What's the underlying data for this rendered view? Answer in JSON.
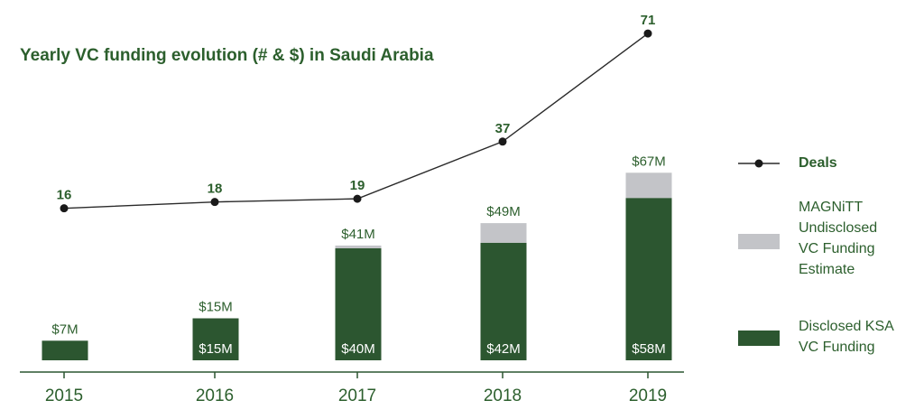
{
  "chart_data": {
    "type": "bar",
    "title": "Yearly VC funding evolution (# & $) in Saudi Arabia",
    "categories": [
      "2015",
      "2016",
      "2017",
      "2018",
      "2019"
    ],
    "series": [
      {
        "name": "Disclosed KSA VC Funding",
        "stack": "funding",
        "values": [
          7,
          15,
          40,
          42,
          58
        ],
        "labels": [
          "",
          "$15M",
          "$40M",
          "$42M",
          "$58M"
        ]
      },
      {
        "name": "MAGNiTT Undisclosed VC Funding Estimate",
        "stack": "funding",
        "values": [
          0,
          0,
          1,
          7,
          9
        ]
      }
    ],
    "totals": {
      "values": [
        7,
        15,
        41,
        49,
        67
      ],
      "labels": [
        "$7M",
        "$15M",
        "$41M",
        "$49M",
        "$67M"
      ]
    },
    "line": {
      "name": "Deals",
      "values": [
        16,
        18,
        19,
        37,
        71
      ],
      "labels": [
        "16",
        "18",
        "19",
        "37",
        "71"
      ]
    },
    "ylim_funding": [
      0,
      100
    ],
    "ylim_deals": [
      0,
      75
    ],
    "colors": {
      "disclosed": "#2c5630",
      "undisclosed": "#c3c4c8",
      "line": "#2a2a2a",
      "text": "#2c5f2d"
    },
    "legend": {
      "position": "right",
      "deals": "Deals",
      "undisclosed": "MAGNiTT Undisclosed VC Funding Estimate",
      "disclosed": "Disclosed KSA VC Funding"
    },
    "grid": false
  }
}
